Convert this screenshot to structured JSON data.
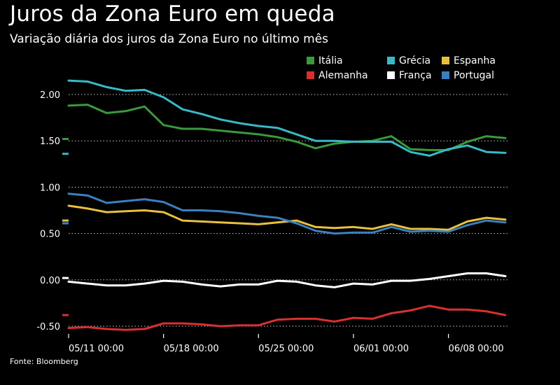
{
  "title": "Juros da Zona Euro em queda",
  "subtitle": "Variação diária dos juros da Zona Euro no último mês",
  "source": "Fonte: Bloomberg",
  "chart_data": {
    "type": "line",
    "ylim": [
      -0.55,
      2.2
    ],
    "yticks": [
      {
        "value": 2.0,
        "label": "2.00"
      },
      {
        "value": 1.5,
        "label": "1.50"
      },
      {
        "value": 1.0,
        "label": "1.00"
      },
      {
        "value": 0.5,
        "label": "0.50"
      },
      {
        "value": 0.0,
        "label": "0.00"
      },
      {
        "value": -0.5,
        "label": "-0.50"
      }
    ],
    "xticks": [
      {
        "index": 0,
        "label": "05/11 00:00"
      },
      {
        "index": 5,
        "label": "05/18 00:00"
      },
      {
        "index": 10,
        "label": "05/25 00:00"
      },
      {
        "index": 15,
        "label": "06/01 00:00"
      },
      {
        "index": 20,
        "label": "06/08 00:00"
      }
    ],
    "grid": true,
    "legend_position": "top-right",
    "num_points": 24,
    "series": [
      {
        "name": "Itália",
        "color": "#3a9a3a",
        "values": [
          1.88,
          1.89,
          1.8,
          1.82,
          1.87,
          1.67,
          1.63,
          1.63,
          1.61,
          1.59,
          1.57,
          1.54,
          1.49,
          1.42,
          1.47,
          1.49,
          1.5,
          1.55,
          1.41,
          1.4,
          1.4,
          1.49,
          1.55,
          1.53
        ]
      },
      {
        "name": "Grécia",
        "color": "#3ab8c8",
        "values": [
          2.15,
          2.14,
          2.08,
          2.04,
          2.05,
          1.97,
          1.84,
          1.79,
          1.73,
          1.69,
          1.66,
          1.64,
          1.57,
          1.5,
          1.5,
          1.49,
          1.49,
          1.49,
          1.38,
          1.34,
          1.41,
          1.45,
          1.38,
          1.37
        ]
      },
      {
        "name": "Espanha",
        "color": "#e8c040",
        "values": [
          0.8,
          0.77,
          0.73,
          0.74,
          0.75,
          0.73,
          0.64,
          0.63,
          0.62,
          0.61,
          0.6,
          0.62,
          0.64,
          0.57,
          0.56,
          0.57,
          0.55,
          0.6,
          0.55,
          0.55,
          0.54,
          0.63,
          0.67,
          0.65
        ]
      },
      {
        "name": "Portugal",
        "color": "#3a80c0",
        "values": [
          0.93,
          0.91,
          0.83,
          0.85,
          0.87,
          0.84,
          0.75,
          0.75,
          0.74,
          0.72,
          0.69,
          0.67,
          0.61,
          0.53,
          0.5,
          0.51,
          0.51,
          0.57,
          0.52,
          0.53,
          0.52,
          0.59,
          0.64,
          0.62
        ]
      },
      {
        "name": "França",
        "color": "#ffffff",
        "values": [
          -0.02,
          -0.04,
          -0.06,
          -0.06,
          -0.04,
          -0.01,
          -0.02,
          -0.05,
          -0.07,
          -0.05,
          -0.05,
          -0.01,
          -0.02,
          -0.06,
          -0.08,
          -0.04,
          -0.05,
          -0.01,
          -0.01,
          0.01,
          0.04,
          0.07,
          0.07,
          0.04
        ]
      },
      {
        "name": "Alemanha",
        "color": "#d83030",
        "values": [
          -0.52,
          -0.51,
          -0.53,
          -0.54,
          -0.53,
          -0.47,
          -0.47,
          -0.48,
          -0.5,
          -0.49,
          -0.49,
          -0.43,
          -0.42,
          -0.42,
          -0.45,
          -0.41,
          -0.42,
          -0.36,
          -0.33,
          -0.28,
          -0.32,
          -0.32,
          -0.34,
          -0.38
        ]
      }
    ],
    "legend_order": [
      "Itália",
      "Grécia",
      "Espanha",
      "Alemanha",
      "França",
      "Portugal"
    ],
    "start_markers": [
      {
        "series": "Itália",
        "value": 1.52
      },
      {
        "series": "Grécia",
        "value": 1.36
      },
      {
        "series": "Espanha",
        "value": 0.64
      },
      {
        "series": "Portugal",
        "value": 0.61
      },
      {
        "series": "França",
        "value": 0.02
      },
      {
        "series": "Alemanha",
        "value": -0.38
      }
    ]
  }
}
